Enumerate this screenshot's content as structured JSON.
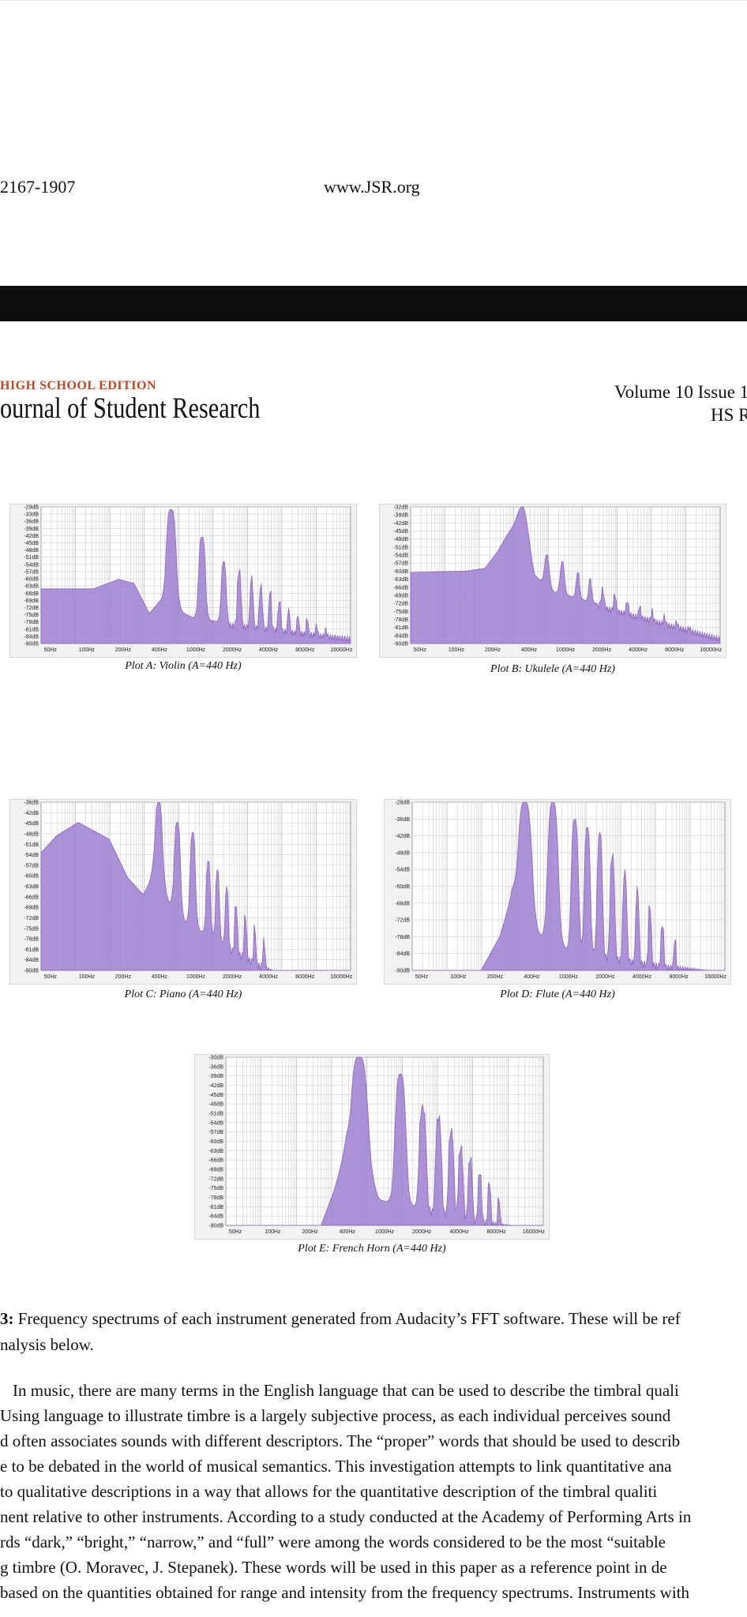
{
  "header": {
    "issn": "2167-1907",
    "site": "www.JSR.org",
    "edition": "HIGH SCHOOL EDITION",
    "journal": "ournal of Student Research",
    "volume": "Volume 10 Issue 1",
    "hs": "HS R"
  },
  "plots": [
    {
      "id": "A",
      "caption": "Plot A: Violin (A=440 Hz)",
      "y_labels": [
        "-29dB",
        "-33dB",
        "-36dB",
        "-39dB",
        "-42dB",
        "-45dB",
        "-48dB",
        "-51dB",
        "-54dB",
        "-57dB",
        "-60dB",
        "-63dB",
        "-66dB",
        "-69dB",
        "-72dB",
        "-75dB",
        "-78dB",
        "-81dB",
        "-84dB",
        "-90dB"
      ],
      "x_labels": [
        "50Hz",
        "100Hz",
        "200Hz",
        "400Hz",
        "1000Hz",
        "2000Hz",
        "4000Hz",
        "8000Hz",
        "16000Hz"
      ]
    },
    {
      "id": "B",
      "caption": "Plot B: Ukulele (A=440 Hz)",
      "y_labels": [
        "-32dB",
        "-39dB",
        "-42dB",
        "-45dB",
        "-48dB",
        "-51dB",
        "-54dB",
        "-57dB",
        "-60dB",
        "-63dB",
        "-66dB",
        "-69dB",
        "-72dB",
        "-75dB",
        "-78dB",
        "-81dB",
        "-84dB",
        "-90dB"
      ],
      "x_labels": [
        "50Hz",
        "100Hz",
        "200Hz",
        "400Hz",
        "1000Hz",
        "2000Hz",
        "4000Hz",
        "8000Hz",
        "16000Hz"
      ]
    },
    {
      "id": "C",
      "caption": "Plot C: Piano (A=440 Hz)",
      "y_labels": [
        "-36dB",
        "-42dB",
        "-45dB",
        "-48dB",
        "-51dB",
        "-54dB",
        "-57dB",
        "-60dB",
        "-63dB",
        "-66dB",
        "-69dB",
        "-72dB",
        "-75dB",
        "-78dB",
        "-81dB",
        "-84dB",
        "-90dB"
      ],
      "x_labels": [
        "50Hz",
        "100Hz",
        "200Hz",
        "400Hz",
        "1000Hz",
        "2000Hz",
        "4000Hz",
        "8000Hz",
        "16000Hz"
      ]
    },
    {
      "id": "D",
      "caption": "Plot D: Flute (A=440 Hz)",
      "y_labels": [
        "-28dB",
        "-36dB",
        "-42dB",
        "-48dB",
        "-54dB",
        "-60dB",
        "-66dB",
        "-72dB",
        "-78dB",
        "-84dB",
        "-90dB"
      ],
      "x_labels": [
        "50Hz",
        "100Hz",
        "200Hz",
        "400Hz",
        "1000Hz",
        "2000Hz",
        "4000Hz",
        "8000Hz",
        "16000Hz"
      ]
    },
    {
      "id": "E",
      "caption": "Plot E: French Horn (A=440 Hz)",
      "y_labels": [
        "-30dB",
        "-36dB",
        "-39dB",
        "-42dB",
        "-45dB",
        "-48dB",
        "-51dB",
        "-54dB",
        "-57dB",
        "-60dB",
        "-63dB",
        "-66dB",
        "-69dB",
        "-72dB",
        "-75dB",
        "-78dB",
        "-81dB",
        "-84dB",
        "-90dB"
      ],
      "x_labels": [
        "50Hz",
        "100Hz",
        "200Hz",
        "400Hz",
        "1000Hz",
        "2000Hz",
        "4000Hz",
        "8000Hz",
        "16000Hz"
      ]
    }
  ],
  "figure_caption": {
    "label": "3:",
    "line1": " Frequency spectrums of each instrument generated from Audacity’s FFT software. These will be ref",
    "line2": "nalysis below."
  },
  "paragraph": [
    "In music, there are many terms in the English language that can be used to describe the timbral quali",
    "Using language to illustrate timbre is a largely subjective process, as each individual perceives sound",
    "d often associates sounds with different descriptors. The “proper” words that should be used to describ",
    "e to be debated in the world of musical semantics. This investigation attempts to link quantitative ana",
    "to qualitative descriptions in a way that allows for the quantitative description of the timbral qualiti",
    "nent relative to other instruments. According to a study conducted at the Academy of Performing Arts in",
    "rds “dark,” “bright,” “narrow,” and “full” were among the words considered to be the most “suitable",
    "g timbre (O. Moravec, J. Stepanek). These words will be used in this paper as a reference point in de",
    "based on the quantities obtained for range and intensity from the frequency spectrums. Instruments with"
  ],
  "colors": {
    "fill": "#a07fd0",
    "stroke": "#8a63c2",
    "grid": "#cfcfcf",
    "header_bar": "#0d0d0d",
    "edition": "#c2461f"
  }
}
